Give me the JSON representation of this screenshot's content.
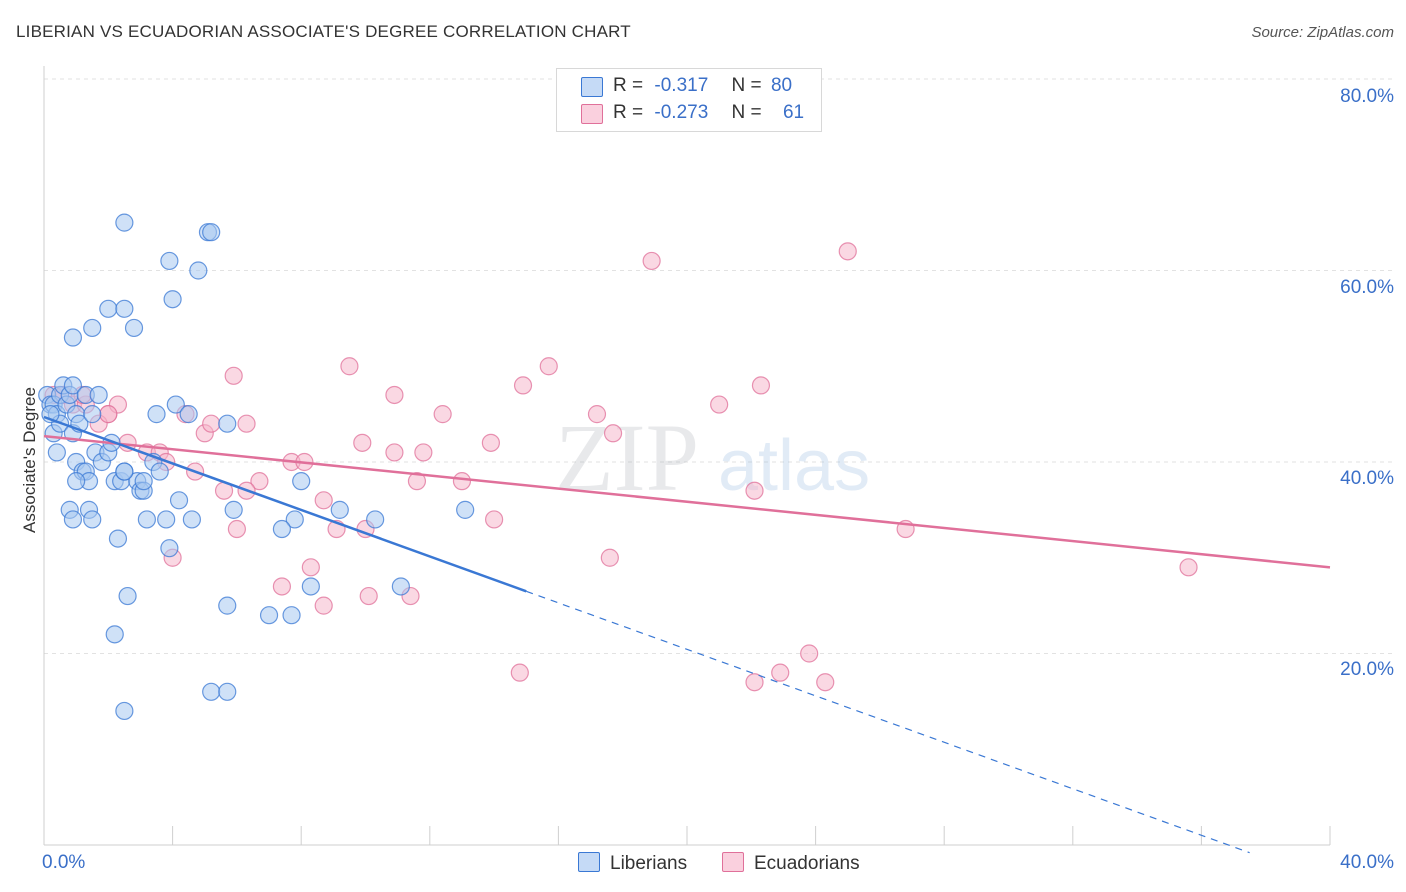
{
  "header": {
    "title": "LIBERIAN VS ECUADORIAN ASSOCIATE'S DEGREE CORRELATION CHART",
    "source": "Source: ZipAtlas.com"
  },
  "watermark": {
    "zip": "ZIP",
    "atlas": "atlas"
  },
  "legend": {
    "rows": [
      {
        "r_label": "R =",
        "r_value": "-0.317",
        "n_label": "N =",
        "n_value": "80",
        "color": "#a8c8f0"
      },
      {
        "r_label": "R =",
        "r_value": "-0.273",
        "n_label": "N =",
        "n_value": "61",
        "color": "#f6b8cc"
      }
    ]
  },
  "bottom_legend": {
    "liberians": "Liberians",
    "ecuadorians": "Ecuadorians"
  },
  "chart_data": {
    "type": "scatter",
    "title": "LIBERIAN VS ECUADORIAN ASSOCIATE'S DEGREE CORRELATION CHART",
    "xlabel": "",
    "ylabel": "Associate's Degree",
    "xlim": [
      0,
      40
    ],
    "ylim": [
      0,
      80
    ],
    "x_tick_labels": [
      "0.0%",
      "40.0%"
    ],
    "y_tick_labels": [
      "20.0%",
      "40.0%",
      "60.0%",
      "80.0%"
    ],
    "y_ticks": [
      20,
      40,
      60,
      80
    ],
    "grid": true,
    "legend_position": "top-center",
    "series": [
      {
        "name": "Liberians",
        "color": "#3a78d4",
        "fill": "#a8c8f0",
        "r": -0.317,
        "n": 80,
        "trend": {
          "x0": 0.0,
          "y0": 44.7,
          "x1": 15.0,
          "y1": 26.5,
          "x_end": 37.5
        },
        "points": [
          [
            0.1,
            47
          ],
          [
            0.2,
            46
          ],
          [
            0.3,
            46
          ],
          [
            0.4,
            45
          ],
          [
            0.5,
            47
          ],
          [
            0.6,
            48
          ],
          [
            0.7,
            46
          ],
          [
            0.8,
            47
          ],
          [
            0.9,
            48
          ],
          [
            1.0,
            45
          ],
          [
            0.3,
            43
          ],
          [
            0.5,
            44
          ],
          [
            0.9,
            43
          ],
          [
            1.1,
            44
          ],
          [
            0.4,
            41
          ],
          [
            1.0,
            40
          ],
          [
            1.2,
            39
          ],
          [
            1.3,
            39
          ],
          [
            1.4,
            38
          ],
          [
            1.6,
            41
          ],
          [
            1.8,
            40
          ],
          [
            2.0,
            41
          ],
          [
            2.1,
            42
          ],
          [
            2.2,
            38
          ],
          [
            2.4,
            38
          ],
          [
            2.5,
            39
          ],
          [
            2.9,
            38
          ],
          [
            3.0,
            37
          ],
          [
            3.1,
            37
          ],
          [
            3.4,
            40
          ],
          [
            1.3,
            47
          ],
          [
            1.5,
            45
          ],
          [
            1.7,
            47
          ],
          [
            3.5,
            45
          ],
          [
            4.1,
            46
          ],
          [
            4.5,
            45
          ],
          [
            5.7,
            44
          ],
          [
            4.2,
            36
          ],
          [
            3.2,
            34
          ],
          [
            3.8,
            34
          ],
          [
            4.6,
            34
          ],
          [
            5.9,
            35
          ],
          [
            7.8,
            34
          ],
          [
            8.0,
            38
          ],
          [
            9.2,
            35
          ],
          [
            10.3,
            34
          ],
          [
            13.1,
            35
          ],
          [
            0.8,
            35
          ],
          [
            0.9,
            34
          ],
          [
            1.4,
            35
          ],
          [
            1.5,
            34
          ],
          [
            2.3,
            32
          ],
          [
            3.9,
            31
          ],
          [
            2.6,
            26
          ],
          [
            2.2,
            22
          ],
          [
            5.7,
            25
          ],
          [
            7.0,
            24
          ],
          [
            7.7,
            24
          ],
          [
            8.3,
            27
          ],
          [
            11.1,
            27
          ],
          [
            2.5,
            14
          ],
          [
            5.2,
            16
          ],
          [
            5.7,
            16
          ],
          [
            2.5,
            65
          ],
          [
            5.1,
            64
          ],
          [
            5.2,
            64
          ],
          [
            3.9,
            61
          ],
          [
            4.8,
            60
          ],
          [
            4.0,
            57
          ],
          [
            2.0,
            56
          ],
          [
            2.5,
            56
          ],
          [
            1.5,
            54
          ],
          [
            2.8,
            54
          ],
          [
            0.9,
            53
          ],
          [
            3.6,
            39
          ],
          [
            0.2,
            45
          ],
          [
            2.5,
            39
          ],
          [
            1.0,
            38
          ],
          [
            7.4,
            33
          ],
          [
            3.1,
            38
          ]
        ]
      },
      {
        "name": "Ecuadorians",
        "color": "#e0709a",
        "fill": "#f6b8cc",
        "r": -0.273,
        "n": 61,
        "trend": {
          "x0": 0.0,
          "y0": 42.7,
          "x1": 40.0,
          "y1": 29.0
        },
        "points": [
          [
            0.3,
            47
          ],
          [
            0.6,
            47
          ],
          [
            0.9,
            46
          ],
          [
            1.3,
            46
          ],
          [
            2.0,
            45
          ],
          [
            2.3,
            46
          ],
          [
            4.4,
            45
          ],
          [
            1.7,
            44
          ],
          [
            2.6,
            42
          ],
          [
            3.2,
            41
          ],
          [
            3.6,
            41
          ],
          [
            3.8,
            40
          ],
          [
            5.0,
            43
          ],
          [
            5.2,
            44
          ],
          [
            6.3,
            44
          ],
          [
            5.9,
            49
          ],
          [
            6.7,
            38
          ],
          [
            7.7,
            40
          ],
          [
            8.1,
            40
          ],
          [
            5.6,
            37
          ],
          [
            4.7,
            39
          ],
          [
            6.3,
            37
          ],
          [
            8.7,
            36
          ],
          [
            9.1,
            33
          ],
          [
            10.0,
            33
          ],
          [
            9.5,
            50
          ],
          [
            10.9,
            47
          ],
          [
            9.9,
            42
          ],
          [
            10.9,
            41
          ],
          [
            11.8,
            41
          ],
          [
            11.6,
            38
          ],
          [
            12.4,
            45
          ],
          [
            13.0,
            38
          ],
          [
            13.9,
            42
          ],
          [
            14.0,
            34
          ],
          [
            14.9,
            48
          ],
          [
            15.7,
            50
          ],
          [
            17.2,
            45
          ],
          [
            17.7,
            43
          ],
          [
            17.6,
            30
          ],
          [
            18.9,
            61
          ],
          [
            21.0,
            46
          ],
          [
            22.3,
            48
          ],
          [
            22.1,
            37
          ],
          [
            25.0,
            62
          ],
          [
            26.8,
            33
          ],
          [
            35.6,
            29
          ],
          [
            6.0,
            33
          ],
          [
            7.4,
            27
          ],
          [
            8.3,
            29
          ],
          [
            8.7,
            25
          ],
          [
            10.1,
            26
          ],
          [
            11.4,
            26
          ],
          [
            4.0,
            30
          ],
          [
            14.8,
            18
          ],
          [
            22.1,
            17
          ],
          [
            22.9,
            18
          ],
          [
            23.8,
            20
          ],
          [
            24.3,
            17
          ],
          [
            1.2,
            47
          ],
          [
            2.0,
            45
          ]
        ]
      }
    ]
  }
}
